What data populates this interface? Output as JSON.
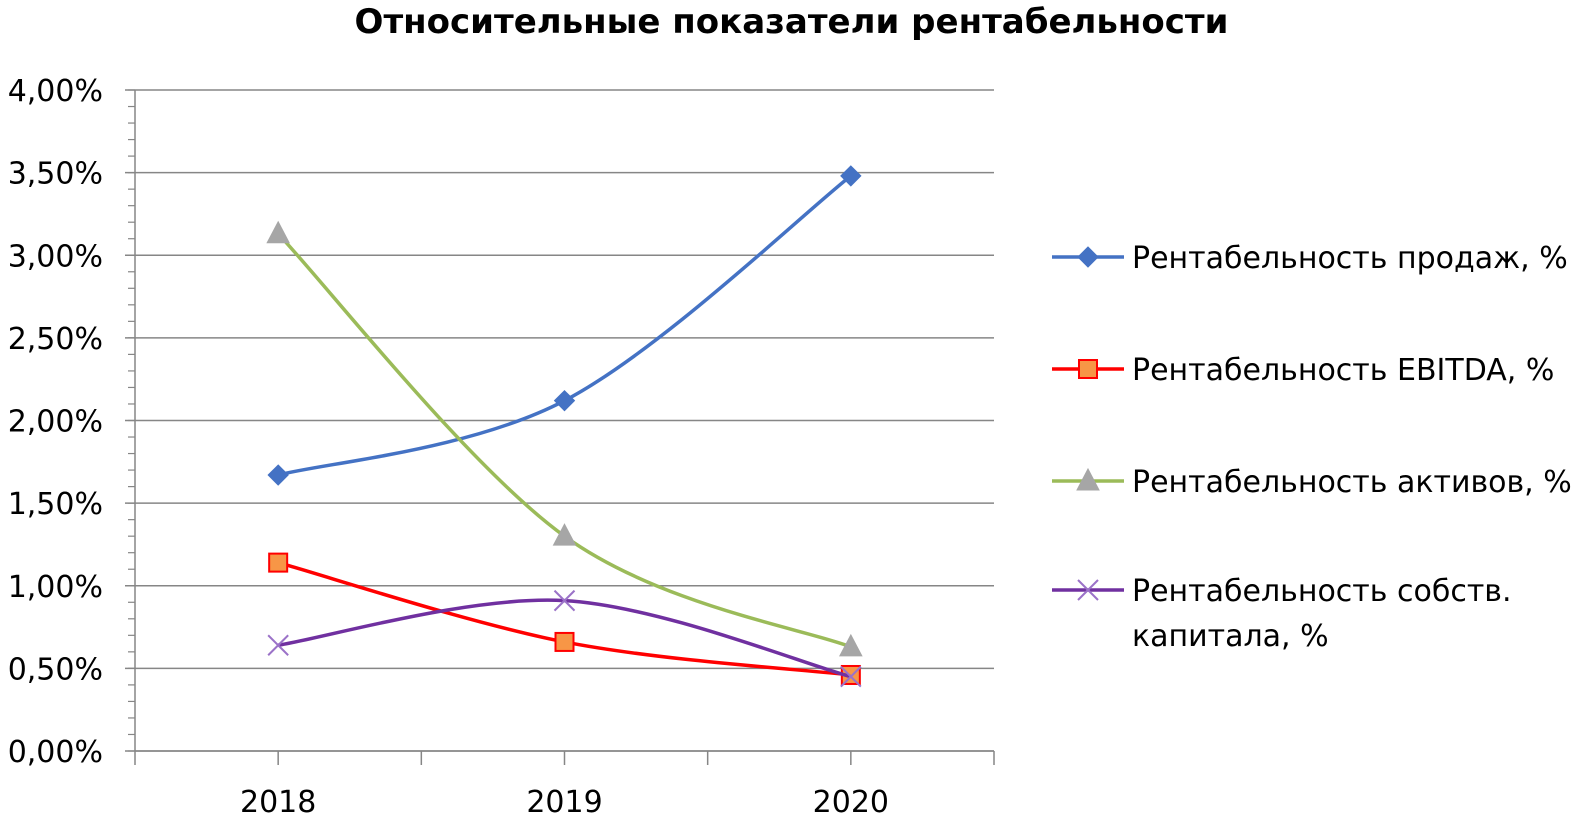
{
  "chart_data": {
    "type": "line",
    "title": "Относительные показатели рентабельности",
    "categories": [
      "2018",
      "2019",
      "2020"
    ],
    "ylim": [
      0,
      4
    ],
    "ytick_values": [
      0,
      0.5,
      1,
      1.5,
      2,
      2.5,
      3,
      3.5,
      4
    ],
    "ytick_labels": [
      "0,00%",
      "0,50%",
      "1,00%",
      "1,50%",
      "2,00%",
      "2,50%",
      "3,00%",
      "3,50%",
      "4,00%"
    ],
    "y_unit": "%",
    "grid": true,
    "legend_position": "right",
    "smoothed": true,
    "series": [
      {
        "name": "Рентабельность продаж, %",
        "legend_lines": [
          "Рентабельность продаж, %"
        ],
        "values": [
          1.67,
          2.12,
          3.48
        ],
        "color": "#4472C4",
        "marker": "diamond"
      },
      {
        "name": "Рентабельность EBITDA, %",
        "legend_lines": [
          "Рентабельность EBITDA, %"
        ],
        "values": [
          1.14,
          0.66,
          0.46
        ],
        "color": "#FF0000",
        "marker": "square",
        "marker_fill": "#F79646"
      },
      {
        "name": "Рентабельность активов, %",
        "legend_lines": [
          "Рентабельность активов, %"
        ],
        "values": [
          3.13,
          1.3,
          0.63
        ],
        "color": "#9BBB59",
        "marker": "triangle",
        "marker_fill": "#A6A6A6"
      },
      {
        "name": "Рентабельность собств. капитала, %",
        "legend_lines": [
          "Рентабельность собств.",
          "капитала, %"
        ],
        "values": [
          0.64,
          0.91,
          0.45
        ],
        "color": "#7030A0",
        "marker": "x",
        "marker_fill": "#9B72C8"
      }
    ]
  }
}
